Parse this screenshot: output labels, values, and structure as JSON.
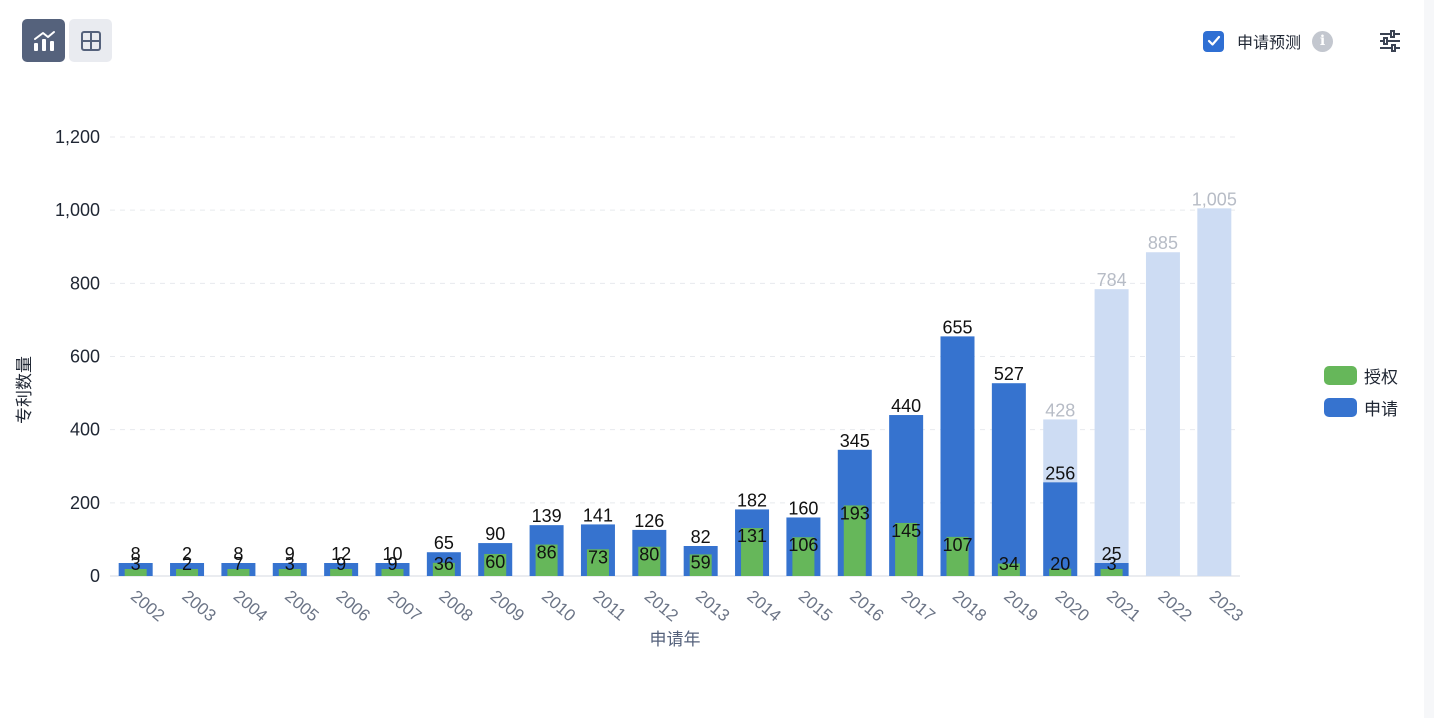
{
  "toolbar": {
    "chart_view_icon": "bar-line-chart-icon",
    "table_view_icon": "table-grid-icon",
    "forecast_label": "申请预测",
    "forecast_checked": true,
    "info_icon": "info-icon",
    "settings_icon": "sliders-settings-icon"
  },
  "colors": {
    "granted": "#66b75a",
    "applied": "#3673cf",
    "forecast": "#cddcf3",
    "forecast_label": "#b7bcc6"
  },
  "chart_data": {
    "type": "bar",
    "xlabel": "申请年",
    "ylabel": "专利数量",
    "ylim": [
      0,
      1200
    ],
    "yticks": [
      "0",
      "200",
      "400",
      "600",
      "800",
      "1,000",
      "1,200"
    ],
    "grid": true,
    "legend_position": "right",
    "categories": [
      "2002",
      "2003",
      "2004",
      "2005",
      "2006",
      "2007",
      "2008",
      "2009",
      "2010",
      "2011",
      "2012",
      "2013",
      "2014",
      "2015",
      "2016",
      "2017",
      "2018",
      "2019",
      "2020",
      "2021",
      "2022",
      "2023"
    ],
    "series": [
      {
        "name": "授权",
        "values": [
          3,
          2,
          7,
          3,
          9,
          9,
          36,
          60,
          86,
          73,
          80,
          59,
          131,
          106,
          193,
          145,
          107,
          34,
          20,
          3,
          null,
          null
        ],
        "labels": [
          "3",
          "2",
          "7",
          "3",
          "9",
          "9",
          "36",
          "60",
          "86",
          "73",
          "80",
          "59",
          "131",
          "106",
          "193",
          "145",
          "107",
          "34",
          "20",
          "3",
          "",
          ""
        ]
      },
      {
        "name": "申请",
        "values": [
          8,
          2,
          8,
          9,
          12,
          10,
          65,
          90,
          139,
          141,
          126,
          82,
          182,
          160,
          345,
          440,
          655,
          527,
          256,
          25,
          null,
          null
        ],
        "labels": [
          "8",
          "2",
          "8",
          "9",
          "12",
          "10",
          "65",
          "90",
          "139",
          "141",
          "126",
          "82",
          "182",
          "160",
          "345",
          "440",
          "655",
          "527",
          "256",
          "25",
          "",
          ""
        ]
      },
      {
        "name": "申请预测",
        "values": [
          null,
          null,
          null,
          null,
          null,
          null,
          null,
          null,
          null,
          null,
          null,
          null,
          null,
          null,
          null,
          null,
          null,
          null,
          428,
          784,
          885,
          1005
        ],
        "labels": [
          "",
          "",
          "",
          "",
          "",
          "",
          "",
          "",
          "",
          "",
          "",
          "",
          "",
          "",
          "",
          "",
          "",
          "",
          "428",
          "784",
          "885",
          "1,005"
        ]
      }
    ]
  }
}
